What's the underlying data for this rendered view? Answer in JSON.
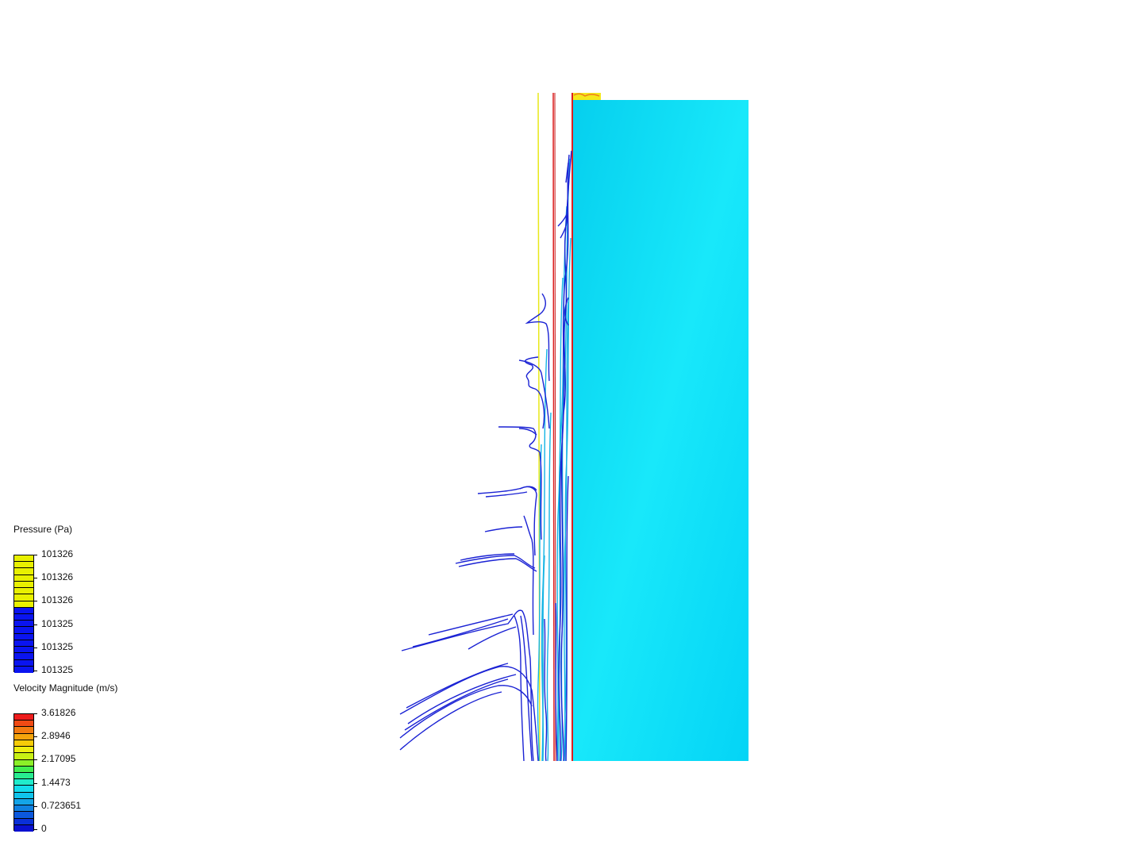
{
  "legends": [
    {
      "title": "Pressure (Pa)",
      "labels": [
        "101326",
        "101326",
        "101326",
        "101325",
        "101325",
        "101325"
      ],
      "colors": [
        "#e8f000",
        "#e8f000",
        "#e8f000",
        "#e8f000",
        "#e8f000",
        "#e8f000",
        "#e8f000",
        "#e8f000",
        "#0a14f0",
        "#0a14f0",
        "#0a14f0",
        "#0a14f0",
        "#0a14f0",
        "#0a14f0",
        "#0a14f0",
        "#0a14f0",
        "#0a14f0",
        "#0a14f0"
      ]
    },
    {
      "title": "Velocity Magnitude (m/s)",
      "labels": [
        "3.61826",
        "2.8946",
        "2.17095",
        "1.4473",
        "0.723651",
        "0"
      ],
      "colors": [
        "#ee1c1c",
        "#f04a14",
        "#f27a10",
        "#f4a40c",
        "#f6cc08",
        "#eeee10",
        "#c8f014",
        "#8cf028",
        "#40ee50",
        "#28ec90",
        "#20eccc",
        "#14dcec",
        "#10c4ec",
        "#14a4e8",
        "#1080e0",
        "#0c58dc",
        "#0a30d8",
        "#0a10d0"
      ]
    }
  ],
  "colors": {
    "domain": "#0dd8f8",
    "streamline_dark": "#1020d0",
    "streamline_mid": "#14b4e4",
    "wall_red": "#dc2020",
    "wall_yellow": "#e8e818"
  }
}
